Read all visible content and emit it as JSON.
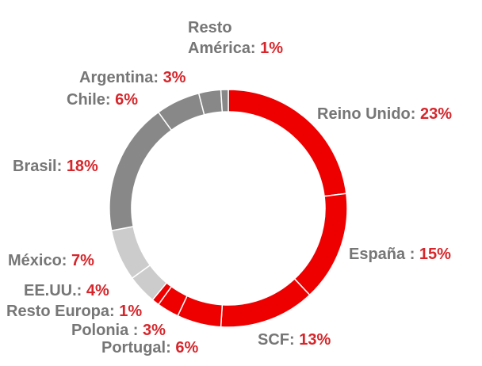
{
  "chart_data": {
    "type": "donut",
    "categories": [
      "Reino Unido:",
      "España :",
      "SCF:",
      "Portugal:",
      "Polonia :",
      "Resto Europa:",
      "EE.UU.:",
      "México:",
      "Brasil:",
      "Chile:",
      "Argentina:",
      "Resto América:"
    ],
    "values": [
      23,
      15,
      13,
      6,
      3,
      1,
      4,
      7,
      18,
      6,
      3,
      1
    ],
    "value_labels": [
      "23%",
      "15%",
      "13%",
      "6%",
      "3%",
      "1%",
      "4%",
      "7%",
      "18%",
      "6%",
      "3%",
      "1%"
    ],
    "colors": [
      "#ee0000",
      "#ee0000",
      "#ee0000",
      "#ee0000",
      "#ee0000",
      "#ee0000",
      "#cccccc",
      "#cccccc",
      "#888888",
      "#888888",
      "#888888",
      "#888888"
    ]
  }
}
